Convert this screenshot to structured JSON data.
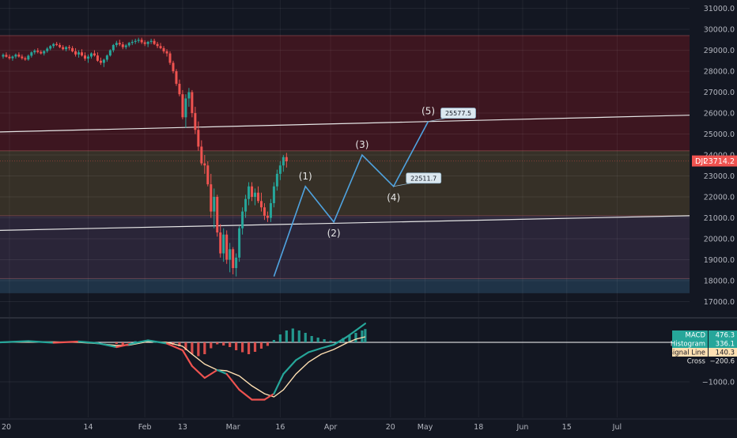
{
  "chart_data": [
    {
      "type": "candlestick",
      "symbol": "DJI",
      "last_price_label": "23714.2",
      "y_ticks": [
        17000,
        18000,
        19000,
        20000,
        21000,
        22000,
        23000,
        24000,
        25000,
        26000,
        27000,
        28000,
        29000,
        30000,
        31000
      ],
      "y_tick_labels": [
        "17000.0",
        "18000.0",
        "19000.0",
        "20000.0",
        "21000.0",
        "22000.0",
        "23000.0",
        "24000.0",
        "25000.0",
        "26000.0",
        "27000.0",
        "28000.0",
        "29000.0",
        "30000.0",
        "31000.0"
      ],
      "ylim": [
        16300,
        31400
      ],
      "x_ticks": [
        {
          "label": "20",
          "day": 0
        },
        {
          "label": "14",
          "day": 25
        },
        {
          "label": "Feb",
          "day": 43
        },
        {
          "label": "13",
          "day": 55
        },
        {
          "label": "Mar",
          "day": 71
        },
        {
          "label": "16",
          "day": 86
        },
        {
          "label": "Apr",
          "day": 102
        },
        {
          "label": "20",
          "day": 121
        },
        {
          "label": "May",
          "day": 132
        },
        {
          "label": "18",
          "day": 149
        },
        {
          "label": "Jun",
          "day": 163
        },
        {
          "label": "15",
          "day": 177
        },
        {
          "label": "Jul",
          "day": 193
        }
      ],
      "xlim": [
        -3,
        216
      ],
      "zones": [
        {
          "from": 24200,
          "to": 29700,
          "color": "#3d1620"
        },
        {
          "from": 21100,
          "to": 24200,
          "color": "#363027"
        },
        {
          "from": 18100,
          "to": 21100,
          "color": "#2a2538"
        },
        {
          "from": 17400,
          "to": 18100,
          "color": "#1f3347"
        }
      ],
      "zone_lines": [
        29700,
        24200,
        21100,
        18100
      ],
      "trend_lines": [
        {
          "from": [
            -3,
            25100
          ],
          "to": [
            216,
            25900
          ]
        },
        {
          "from": [
            -3,
            20400
          ],
          "to": [
            216,
            21100
          ]
        }
      ],
      "candles": [
        [
          -2,
          28700,
          28850,
          28600,
          28780
        ],
        [
          -1,
          28780,
          28900,
          28650,
          28690
        ],
        [
          0,
          28690,
          28800,
          28550,
          28620
        ],
        [
          1,
          28620,
          28750,
          28500,
          28700
        ],
        [
          2,
          28700,
          28850,
          28600,
          28790
        ],
        [
          3,
          28790,
          28900,
          28650,
          28700
        ],
        [
          4,
          28700,
          28800,
          28550,
          28620
        ],
        [
          5,
          28620,
          28700,
          28500,
          28560
        ],
        [
          6,
          28560,
          28800,
          28500,
          28740
        ],
        [
          7,
          28740,
          28950,
          28650,
          28900
        ],
        [
          8,
          28900,
          29050,
          28800,
          28980
        ],
        [
          9,
          28980,
          29100,
          28850,
          28920
        ],
        [
          10,
          28920,
          29000,
          28800,
          28850
        ],
        [
          11,
          28850,
          29000,
          28750,
          28960
        ],
        [
          12,
          28960,
          29150,
          28880,
          29080
        ],
        [
          13,
          29080,
          29250,
          29000,
          29200
        ],
        [
          14,
          29200,
          29350,
          29100,
          29300
        ],
        [
          15,
          29300,
          29400,
          29200,
          29250
        ],
        [
          16,
          29250,
          29350,
          29100,
          29150
        ],
        [
          17,
          29150,
          29250,
          29000,
          29050
        ],
        [
          18,
          29050,
          29200,
          28950,
          29150
        ],
        [
          19,
          29150,
          29250,
          29000,
          29100
        ],
        [
          20,
          29100,
          29200,
          28900,
          28950
        ],
        [
          21,
          28950,
          29100,
          28700,
          28800
        ],
        [
          22,
          28800,
          29000,
          28650,
          28900
        ],
        [
          23,
          28900,
          29050,
          28700,
          28750
        ],
        [
          24,
          28750,
          28900,
          28500,
          28600
        ],
        [
          25,
          28600,
          28800,
          28400,
          28700
        ],
        [
          26,
          28700,
          28900,
          28600,
          28850
        ],
        [
          27,
          28850,
          29000,
          28700,
          28750
        ],
        [
          28,
          28750,
          28900,
          28450,
          28500
        ],
        [
          29,
          28500,
          28650,
          28300,
          28400
        ],
        [
          30,
          28400,
          28600,
          28200,
          28550
        ],
        [
          31,
          28550,
          28800,
          28450,
          28750
        ],
        [
          32,
          28750,
          29050,
          28700,
          29000
        ],
        [
          33,
          29000,
          29300,
          28900,
          29250
        ],
        [
          34,
          29250,
          29450,
          29150,
          29350
        ],
        [
          35,
          29350,
          29500,
          29200,
          29280
        ],
        [
          36,
          29280,
          29400,
          29050,
          29150
        ],
        [
          37,
          29150,
          29300,
          29050,
          29230
        ],
        [
          38,
          29230,
          29400,
          29150,
          29350
        ],
        [
          39,
          29350,
          29500,
          29250,
          29400
        ],
        [
          40,
          29400,
          29550,
          29300,
          29450
        ],
        [
          41,
          29450,
          29600,
          29350,
          29500
        ],
        [
          42,
          29500,
          29600,
          29300,
          29380
        ],
        [
          43,
          29380,
          29480,
          29200,
          29300
        ],
        [
          44,
          29300,
          29450,
          29150,
          29400
        ],
        [
          45,
          29400,
          29550,
          29300,
          29450
        ],
        [
          46,
          29450,
          29550,
          29250,
          29300
        ],
        [
          47,
          29300,
          29400,
          29100,
          29200
        ],
        [
          48,
          29200,
          29350,
          29050,
          29100
        ],
        [
          49,
          29100,
          29200,
          28850,
          28950
        ],
        [
          50,
          28950,
          29050,
          28700,
          28850
        ],
        [
          51,
          28850,
          28950,
          28300,
          28400
        ],
        [
          52,
          28400,
          28500,
          27900,
          28000
        ],
        [
          53,
          28000,
          28100,
          27300,
          27400
        ],
        [
          54,
          27400,
          27600,
          26800,
          26900
        ],
        [
          55,
          26900,
          27100,
          25700,
          25800
        ],
        [
          56,
          25800,
          26900,
          25300,
          26700
        ],
        [
          57,
          26700,
          27200,
          26300,
          27000
        ],
        [
          58,
          27000,
          27100,
          25800,
          26000
        ],
        [
          59,
          26000,
          26300,
          25000,
          25200
        ],
        [
          60,
          25200,
          25600,
          24200,
          24400
        ],
        [
          61,
          24400,
          24700,
          23500,
          23600
        ],
        [
          62,
          23600,
          24000,
          23100,
          23500
        ],
        [
          63,
          23500,
          23700,
          22500,
          22600
        ],
        [
          64,
          22600,
          23100,
          21000,
          21300
        ],
        [
          65,
          21300,
          22400,
          20500,
          22000
        ],
        [
          66,
          22000,
          22100,
          20100,
          20300
        ],
        [
          67,
          20300,
          20700,
          19100,
          19300
        ],
        [
          68,
          19300,
          20500,
          18900,
          20200
        ],
        [
          69,
          20200,
          20400,
          18800,
          19000
        ],
        [
          70,
          19000,
          19800,
          18400,
          19500
        ],
        [
          71,
          19500,
          19600,
          18300,
          18600
        ],
        [
          72,
          18600,
          19300,
          18200,
          19100
        ],
        [
          73,
          19100,
          20600,
          18900,
          20500
        ],
        [
          74,
          20500,
          21500,
          20200,
          21300
        ],
        [
          75,
          21300,
          22100,
          21000,
          21900
        ],
        [
          76,
          21900,
          22700,
          21600,
          22500
        ],
        [
          77,
          22500,
          22700,
          21800,
          22000
        ],
        [
          78,
          22000,
          22400,
          21600,
          22200
        ],
        [
          79,
          22200,
          22500,
          21700,
          21800
        ],
        [
          80,
          21800,
          22200,
          21300,
          21500
        ],
        [
          81,
          21500,
          21700,
          20900,
          21100
        ],
        [
          82,
          21100,
          21300,
          20800,
          21000
        ],
        [
          83,
          21000,
          21900,
          20800,
          21700
        ],
        [
          84,
          21700,
          22700,
          21500,
          22500
        ],
        [
          85,
          22500,
          23300,
          22300,
          23100
        ],
        [
          86,
          23100,
          23700,
          22800,
          23500
        ],
        [
          87,
          23500,
          24000,
          23200,
          23900
        ],
        [
          88,
          23900,
          24100,
          23400,
          23700
        ]
      ],
      "wave_path": [
        [
          84,
          18200
        ],
        [
          94,
          22500
        ],
        [
          103,
          20800
        ],
        [
          112,
          24000
        ],
        [
          122,
          22500
        ],
        [
          133,
          25600
        ]
      ],
      "wave_labels": [
        {
          "label": "(1)",
          "day": 94,
          "value": 22500,
          "pos": "above"
        },
        {
          "label": "(2)",
          "day": 103,
          "value": 20800,
          "pos": "below"
        },
        {
          "label": "(3)",
          "day": 112,
          "value": 24000,
          "pos": "above"
        },
        {
          "label": "(4)",
          "day": 122,
          "value": 22500,
          "pos": "below"
        },
        {
          "label": "(5)",
          "day": 133,
          "value": 25600,
          "pos": "above"
        }
      ],
      "price_tags": [
        {
          "label": "25577.5",
          "day": 133,
          "value": 25600
        },
        {
          "label": "22511.7",
          "day": 122,
          "value": 22500
        }
      ]
    },
    {
      "type": "bar+line",
      "indicator": "MACD",
      "y_tick_labels": [
        "−1000.0"
      ],
      "y_tick_values": [
        -1000
      ],
      "ylim": [
        -1900,
        580
      ],
      "legend": [
        {
          "label": "MACD",
          "value": "476.3",
          "color": "#26a69a"
        },
        {
          "label": "Histogram",
          "value": "336.1",
          "color": "#26a69a"
        },
        {
          "label": "Signal Line",
          "value": "140.3",
          "color": "#ffe0b2"
        },
        {
          "label": "Cross",
          "value": "−200.6",
          "color": "#131722"
        }
      ],
      "macd_line": [
        [
          -3,
          0
        ],
        [
          6,
          30
        ],
        [
          14,
          -10
        ],
        [
          22,
          20
        ],
        [
          28,
          -20
        ],
        [
          34,
          -120
        ],
        [
          38,
          -50
        ],
        [
          44,
          50
        ],
        [
          50,
          -30
        ],
        [
          55,
          -200
        ],
        [
          58,
          -600
        ],
        [
          62,
          -900
        ],
        [
          66,
          -700
        ],
        [
          69,
          -800
        ],
        [
          73,
          -1200
        ],
        [
          77,
          -1450
        ],
        [
          81,
          -1450
        ],
        [
          84,
          -1300
        ],
        [
          87,
          -800
        ],
        [
          91,
          -450
        ],
        [
          95,
          -250
        ],
        [
          99,
          -150
        ],
        [
          103,
          -60
        ],
        [
          107,
          130
        ],
        [
          110,
          300
        ],
        [
          113,
          476
        ]
      ],
      "signal_line": [
        [
          -3,
          0
        ],
        [
          6,
          10
        ],
        [
          14,
          10
        ],
        [
          22,
          0
        ],
        [
          28,
          -30
        ],
        [
          34,
          -80
        ],
        [
          38,
          -70
        ],
        [
          44,
          20
        ],
        [
          50,
          0
        ],
        [
          55,
          -100
        ],
        [
          58,
          -300
        ],
        [
          62,
          -550
        ],
        [
          66,
          -700
        ],
        [
          69,
          -720
        ],
        [
          73,
          -850
        ],
        [
          77,
          -1100
        ],
        [
          81,
          -1300
        ],
        [
          84,
          -1380
        ],
        [
          87,
          -1200
        ],
        [
          91,
          -800
        ],
        [
          95,
          -500
        ],
        [
          99,
          -300
        ],
        [
          103,
          -180
        ],
        [
          107,
          -20
        ],
        [
          110,
          80
        ],
        [
          113,
          140
        ]
      ],
      "histogram": [
        [
          34,
          -40
        ],
        [
          36,
          -60
        ],
        [
          38,
          -20
        ],
        [
          40,
          30
        ],
        [
          42,
          40
        ],
        [
          44,
          30
        ],
        [
          46,
          10
        ],
        [
          48,
          -20
        ],
        [
          50,
          -40
        ],
        [
          52,
          -60
        ],
        [
          54,
          -100
        ],
        [
          56,
          -200
        ],
        [
          58,
          -300
        ],
        [
          60,
          -350
        ],
        [
          62,
          -300
        ],
        [
          64,
          -150
        ],
        [
          66,
          -50
        ],
        [
          68,
          -80
        ],
        [
          70,
          -120
        ],
        [
          72,
          -200
        ],
        [
          74,
          -250
        ],
        [
          76,
          -300
        ],
        [
          78,
          -240
        ],
        [
          80,
          -160
        ],
        [
          82,
          -90
        ],
        [
          84,
          60
        ],
        [
          86,
          200
        ],
        [
          88,
          300
        ],
        [
          90,
          350
        ],
        [
          92,
          300
        ],
        [
          94,
          240
        ],
        [
          96,
          160
        ],
        [
          98,
          120
        ],
        [
          100,
          80
        ],
        [
          102,
          40
        ],
        [
          104,
          20
        ],
        [
          106,
          110
        ],
        [
          108,
          180
        ],
        [
          110,
          240
        ],
        [
          112,
          300
        ],
        [
          113,
          336
        ]
      ]
    }
  ]
}
